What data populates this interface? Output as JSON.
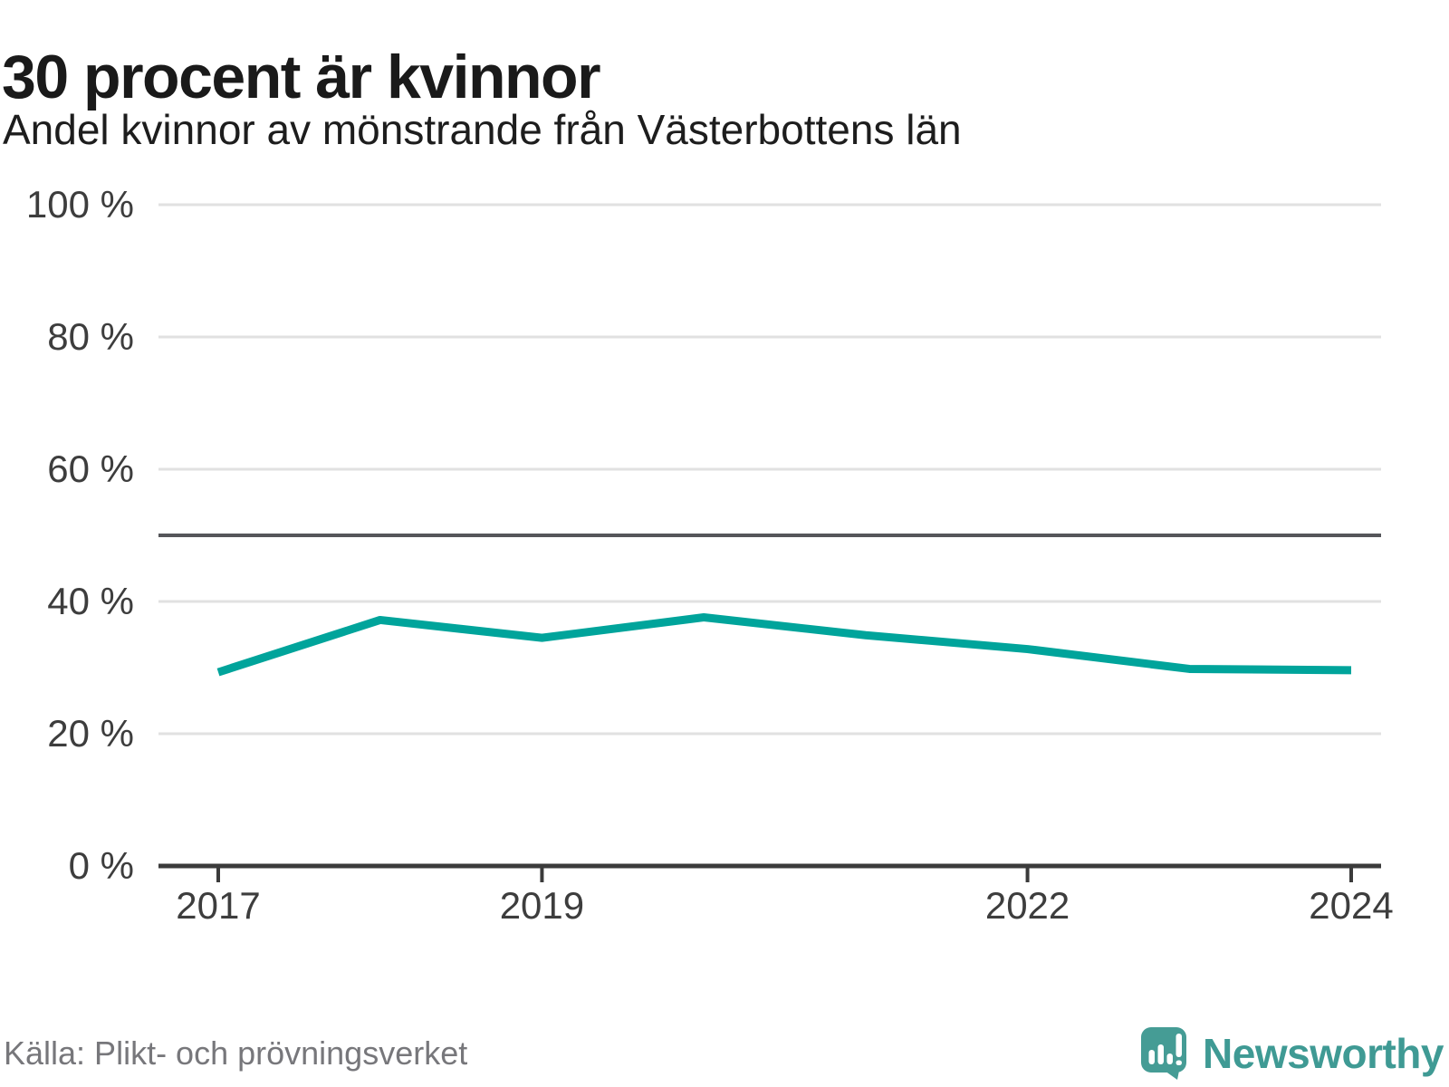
{
  "header": {
    "title": "30 procent är kvinnor",
    "subtitle": "Andel kvinnor av mönstrande från Västerbottens län"
  },
  "chart_data": {
    "type": "line",
    "title": "30 procent är kvinnor",
    "subtitle": "Andel kvinnor av mönstrande från Västerbottens län",
    "x": [
      2017,
      2018,
      2019,
      2020,
      2021,
      2022,
      2023,
      2024
    ],
    "series": [
      {
        "name": "Andel kvinnor av mönstrande",
        "values": [
          29.3,
          37.2,
          34.5,
          37.6,
          34.9,
          32.8,
          29.8,
          29.6
        ]
      }
    ],
    "ylabel": "",
    "xlabel": "",
    "ylim": [
      0,
      100
    ],
    "yticks": [
      0,
      20,
      40,
      60,
      80,
      100
    ],
    "ytick_format": "{v} %",
    "xticks": [
      2017,
      2019,
      2022,
      2024
    ],
    "reference_line": 50,
    "grid": "horizontal",
    "legend": "none"
  },
  "footer": {
    "source": "Källa: Plikt- och prövningsverket",
    "brand": "Newsworthy"
  },
  "colors": {
    "line": "#00a49b",
    "reference_line": "#55565a",
    "gridline": "#e1e1e1",
    "axis": "#3b3b3b",
    "tick_label": "#3d3d3d",
    "title_text": "#1a1a1a",
    "source_text": "#77777b",
    "brand_text": "#3f9a94",
    "logo_fill": "#459c95",
    "background": "#ffffff"
  }
}
